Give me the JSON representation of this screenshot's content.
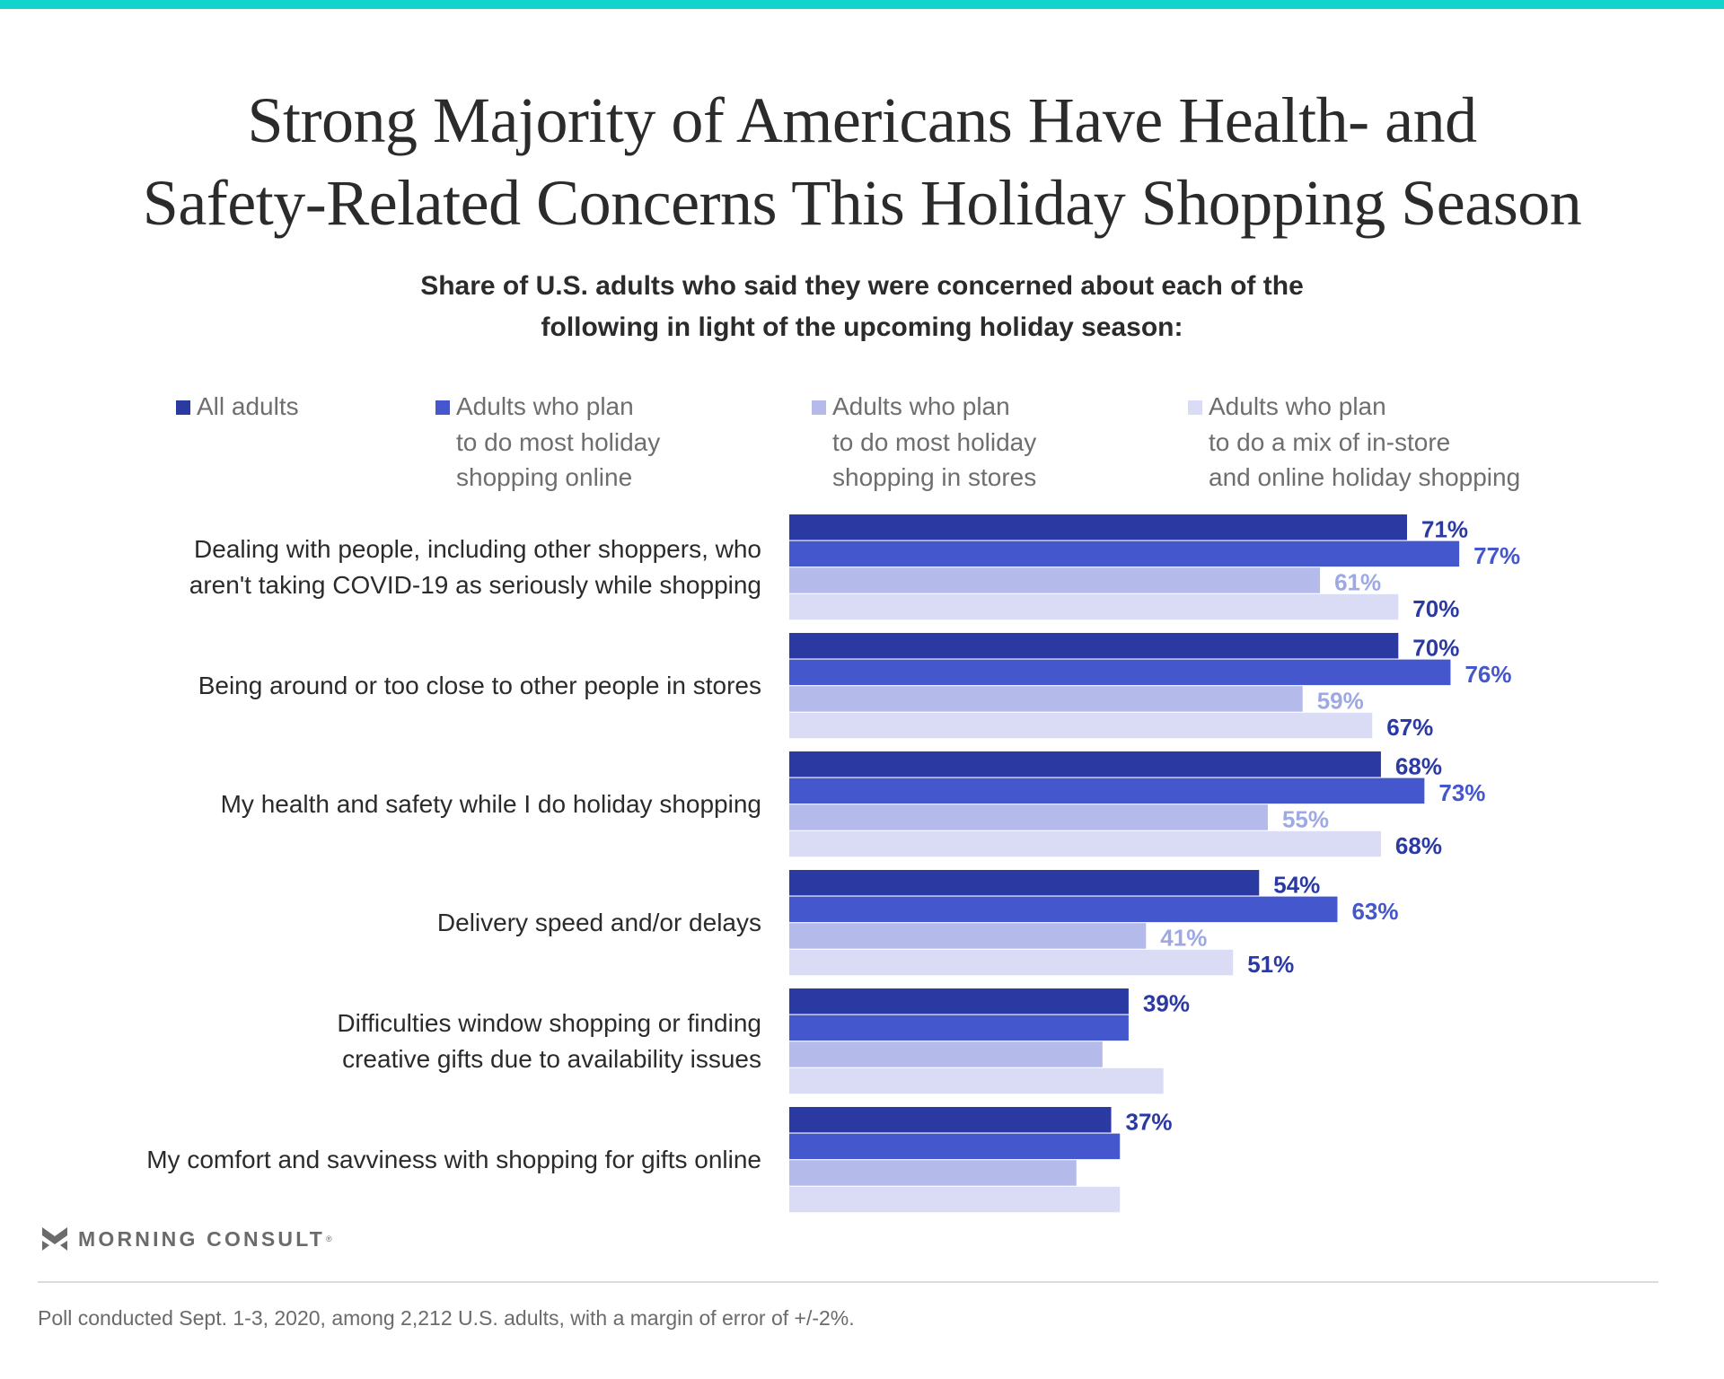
{
  "header": {
    "title_lines": [
      "Strong Majority of Americans Have Health- and",
      "Safety-Related Concerns This Holiday Shopping Season"
    ],
    "subtitle_lines": [
      "Share of U.S. adults who said they were concerned about each of the",
      "following in light of the upcoming holiday season:"
    ]
  },
  "legend": [
    {
      "label": "All adults",
      "color": "#2b3aa3"
    },
    {
      "label": "Adults who plan\nto do most holiday\nshopping online",
      "color": "#4557cc"
    },
    {
      "label": "Adults who plan\nto do most holiday\nshopping in stores",
      "color": "#b4bbea"
    },
    {
      "label": "Adults who plan\nto do a mix of in-store\nand online holiday shopping",
      "color": "#dadcf5"
    }
  ],
  "chart_data": {
    "type": "bar",
    "orientation": "horizontal",
    "title": "Strong Majority of Americans Have Health- and Safety-Related Concerns This Holiday Shopping Season",
    "subtitle": "Share of U.S. adults who said they were concerned about each of the following in light of the upcoming holiday season:",
    "xlabel": "",
    "ylabel": "",
    "xlim": [
      0,
      100
    ],
    "unit": "%",
    "grid": false,
    "legend_position": "top",
    "categories": [
      "Dealing with people, including other shoppers, who\naren't taking COVID-19 as seriously while shopping",
      "Being around or too close to other people in stores",
      "My health and safety while I do holiday shopping",
      "Delivery speed and/or delays",
      "Difficulties window shopping or finding\ncreative gifts due to availability issues",
      "My comfort and savviness with shopping for gifts online"
    ],
    "series": [
      {
        "name": "All adults",
        "color": "#2b3aa3",
        "label_color": "#2b3aa3",
        "values": [
          71,
          70,
          68,
          54,
          39,
          37
        ],
        "labels_shown": [
          true,
          true,
          true,
          true,
          true,
          true
        ]
      },
      {
        "name": "Adults who plan to do most holiday shopping online",
        "color": "#4557cc",
        "label_color": "#4557cc",
        "values": [
          77,
          76,
          73,
          63,
          39,
          38
        ],
        "labels_shown": [
          true,
          true,
          true,
          true,
          false,
          false
        ]
      },
      {
        "name": "Adults who plan to do most holiday shopping in stores",
        "color": "#b4bbea",
        "label_color": "#9ea8e3",
        "values": [
          61,
          59,
          55,
          41,
          36,
          33
        ],
        "labels_shown": [
          true,
          true,
          true,
          true,
          false,
          false
        ]
      },
      {
        "name": "Adults who plan to do a mix of in-store and online holiday shopping",
        "color": "#dadcf5",
        "label_color": "#2b3aa3",
        "values": [
          70,
          67,
          68,
          51,
          43,
          38
        ],
        "labels_shown": [
          true,
          true,
          true,
          true,
          false,
          false
        ]
      }
    ]
  },
  "branding": {
    "logo_icon": "morning-consult-chevron-icon",
    "logo_text": "MORNING CONSULT",
    "logo_reg": "®"
  },
  "footer": {
    "note": "Poll conducted Sept. 1-3, 2020, among 2,212 U.S. adults, with a margin of error of +/-2%."
  },
  "colors": {
    "accent_bar": "#12d4cc",
    "text_dark": "#2b2b2b",
    "text_muted": "#6e6e6e"
  }
}
